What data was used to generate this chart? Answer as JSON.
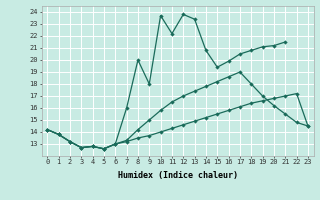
{
  "title": "",
  "xlabel": "Humidex (Indice chaleur)",
  "xlim": [
    -0.5,
    23.5
  ],
  "ylim": [
    12,
    24.5
  ],
  "yticks": [
    13,
    14,
    15,
    16,
    17,
    18,
    19,
    20,
    21,
    22,
    23,
    24
  ],
  "xticks": [
    0,
    1,
    2,
    3,
    4,
    5,
    6,
    7,
    8,
    9,
    10,
    11,
    12,
    13,
    14,
    15,
    16,
    17,
    18,
    19,
    20,
    21,
    22,
    23
  ],
  "bg_color": "#c8ebe3",
  "grid_color": "#ffffff",
  "line_color": "#1a6b5a",
  "line1_x": [
    0,
    1,
    2,
    3,
    4,
    5,
    6,
    7,
    8,
    9,
    10,
    11,
    12,
    13,
    14,
    15,
    16,
    17,
    18,
    19,
    20,
    21
  ],
  "line1_y": [
    14.2,
    13.8,
    13.2,
    12.7,
    12.8,
    12.6,
    13.0,
    16.0,
    20.0,
    18.0,
    23.7,
    22.2,
    23.8,
    23.4,
    20.8,
    19.4,
    19.9,
    20.5,
    20.8,
    21.1,
    21.2,
    21.5
  ],
  "line2_x": [
    0,
    1,
    2,
    3,
    4,
    5,
    6,
    7,
    8,
    9,
    10,
    11,
    12,
    13,
    14,
    15,
    16,
    17,
    18,
    19,
    20,
    21,
    22,
    23
  ],
  "line2_y": [
    14.2,
    13.8,
    13.2,
    12.7,
    12.8,
    12.6,
    13.0,
    13.3,
    14.2,
    15.0,
    15.8,
    16.5,
    17.0,
    17.4,
    17.8,
    18.2,
    18.6,
    19.0,
    18.0,
    17.0,
    16.2,
    15.5,
    14.8,
    14.5
  ],
  "line3_x": [
    0,
    1,
    2,
    3,
    4,
    5,
    6,
    7,
    8,
    9,
    10,
    11,
    12,
    13,
    14,
    15,
    16,
    17,
    18,
    19,
    20,
    21,
    22,
    23
  ],
  "line3_y": [
    14.2,
    13.8,
    13.2,
    12.7,
    12.8,
    12.6,
    13.0,
    13.2,
    13.5,
    13.7,
    14.0,
    14.3,
    14.6,
    14.9,
    15.2,
    15.5,
    15.8,
    16.1,
    16.4,
    16.6,
    16.8,
    17.0,
    17.2,
    14.5
  ]
}
